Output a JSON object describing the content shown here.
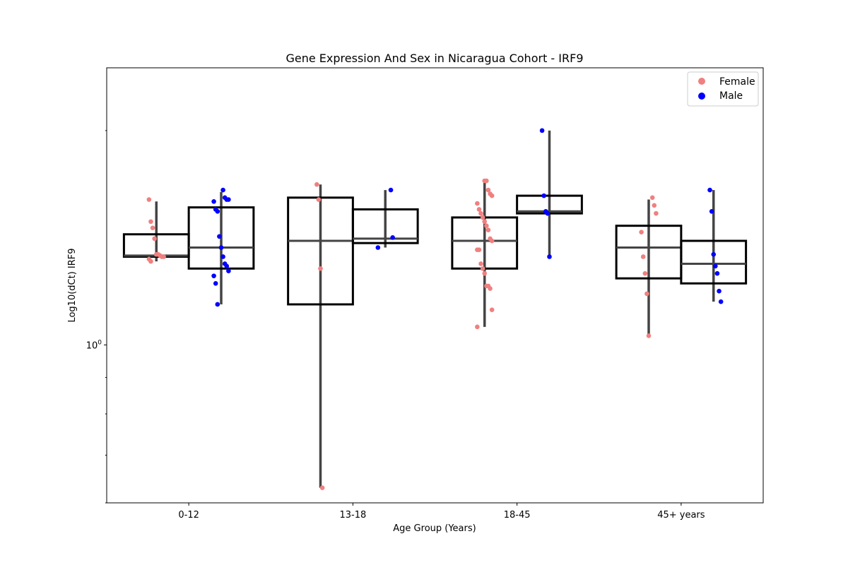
{
  "chart_data": {
    "type": "box",
    "title": "Gene Expression And Sex in Nicaragua Cohort - IRF9",
    "xlabel": "Age Group (Years)",
    "ylabel": "Log10(dCt) IRF9",
    "y_scale": "log",
    "y_tick_labels": [
      "10^0"
    ],
    "ylim": [
      0.6,
      2.45
    ],
    "categories": [
      "0-12",
      "13-18",
      "18-45",
      "45+ years"
    ],
    "legend": {
      "position": "top-right",
      "entries": [
        "Female",
        "Male"
      ]
    },
    "colors": {
      "Female": "#f08080",
      "Male": "#0000ff",
      "box_edge": "#000000",
      "whisker": "#444444"
    },
    "series": [
      {
        "name": "Female",
        "boxes": [
          {
            "category": "0-12",
            "q1": 1.33,
            "median": 1.335,
            "q3": 1.43,
            "whisker_low": 1.31,
            "whisker_high": 1.59
          },
          {
            "category": "13-18",
            "q1": 1.14,
            "median": 1.4,
            "q3": 1.61,
            "whisker_low": 0.63,
            "whisker_high": 1.68
          },
          {
            "category": "18-45",
            "q1": 1.28,
            "median": 1.4,
            "q3": 1.51,
            "whisker_low": 1.06,
            "whisker_high": 1.7
          },
          {
            "category": "45+ years",
            "q1": 1.24,
            "median": 1.37,
            "q3": 1.47,
            "whisker_low": 1.03,
            "whisker_high": 1.6
          }
        ],
        "points": [
          {
            "category": "0-12",
            "values": [
              1.6,
              1.49,
              1.46,
              1.41,
              1.34,
              1.34,
              1.335,
              1.33,
              1.33,
              1.32,
              1.31
            ]
          },
          {
            "category": "13-18",
            "values": [
              1.68,
              1.6,
              1.28,
              0.63
            ]
          },
          {
            "category": "18-45",
            "values": [
              1.7,
              1.7,
              1.65,
              1.63,
              1.62,
              1.58,
              1.55,
              1.53,
              1.51,
              1.49,
              1.47,
              1.45,
              1.41,
              1.4,
              1.36,
              1.36,
              1.3,
              1.28,
              1.26,
              1.21,
              1.21,
              1.2,
              1.12,
              1.06
            ]
          },
          {
            "category": "45+ years",
            "values": [
              1.61,
              1.57,
              1.53,
              1.44,
              1.33,
              1.26,
              1.18,
              1.03
            ]
          }
        ]
      },
      {
        "name": "Male",
        "boxes": [
          {
            "category": "0-12",
            "q1": 1.28,
            "median": 1.37,
            "q3": 1.56,
            "whisker_low": 1.14,
            "whisker_high": 1.64
          },
          {
            "category": "13-18",
            "q1": 1.39,
            "median": 1.41,
            "q3": 1.55,
            "whisker_low": 1.37,
            "whisker_high": 1.65
          },
          {
            "category": "18-45",
            "q1": 1.53,
            "median": 1.54,
            "q3": 1.62,
            "whisker_low": 1.33,
            "whisker_high": 2.0
          },
          {
            "category": "45+ years",
            "q1": 1.22,
            "median": 1.3,
            "q3": 1.4,
            "whisker_low": 1.15,
            "whisker_high": 1.65
          }
        ],
        "points": [
          {
            "category": "0-12",
            "values": [
              1.65,
              1.61,
              1.6,
              1.6,
              1.59,
              1.55,
              1.54,
              1.42,
              1.37,
              1.33,
              1.3,
              1.29,
              1.27,
              1.25,
              1.22,
              1.14
            ]
          },
          {
            "category": "13-18",
            "values": [
              1.65,
              1.415,
              1.37
            ]
          },
          {
            "category": "18-45",
            "values": [
              2.0,
              1.62,
              1.54,
              1.53,
              1.33
            ]
          },
          {
            "category": "45+ years",
            "values": [
              1.65,
              1.54,
              1.34,
              1.29,
              1.26,
              1.19,
              1.15
            ]
          }
        ]
      }
    ]
  }
}
